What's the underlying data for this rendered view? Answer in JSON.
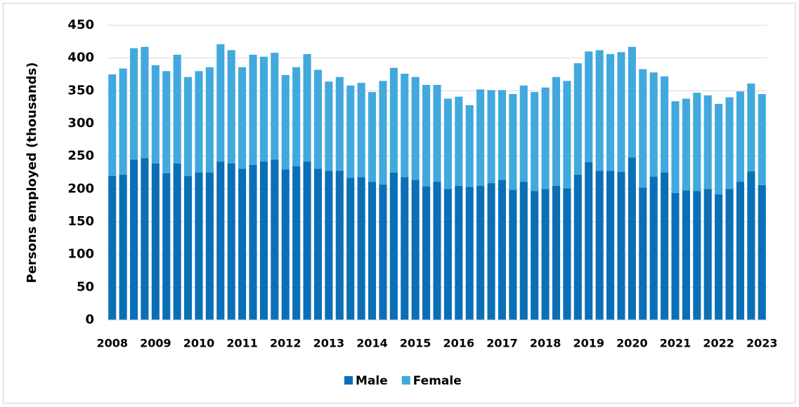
{
  "chart_data": {
    "type": "stacked-bar",
    "y_label": "Persons employed (thousands)",
    "categories": [
      "2008",
      null,
      null,
      null,
      "2009",
      null,
      null,
      null,
      "2010",
      null,
      null,
      null,
      "2011",
      null,
      null,
      null,
      "2012",
      null,
      null,
      null,
      "2013",
      null,
      null,
      null,
      "2014",
      null,
      null,
      null,
      "2015",
      null,
      null,
      null,
      "2016",
      null,
      null,
      null,
      "2017",
      null,
      null,
      null,
      "2018",
      null,
      null,
      null,
      "2019",
      null,
      null,
      null,
      "2020",
      null,
      null,
      null,
      "2021",
      null,
      null,
      null,
      "2022",
      null,
      null,
      null,
      "2023"
    ],
    "series": [
      {
        "name": "Male",
        "color": "#0b6fb6",
        "values": [
          220,
          222,
          245,
          247,
          239,
          224,
          239,
          220,
          225,
          225,
          242,
          239,
          231,
          237,
          242,
          245,
          230,
          235,
          242,
          231,
          228,
          228,
          217,
          218,
          211,
          207,
          225,
          218,
          214,
          204,
          211,
          200,
          205,
          203,
          205,
          209,
          214,
          199,
          211,
          197,
          200,
          205,
          201,
          222,
          241,
          228,
          228,
          226,
          248,
          202,
          219,
          225,
          194,
          198,
          197,
          200,
          192,
          200,
          211,
          227,
          206
        ]
      },
      {
        "name": "Female",
        "color": "#42a9de",
        "values": [
          155,
          162,
          170,
          170,
          150,
          156,
          166,
          151,
          155,
          161,
          179,
          173,
          155,
          168,
          160,
          163,
          144,
          151,
          164,
          151,
          136,
          143,
          141,
          144,
          137,
          158,
          160,
          158,
          157,
          155,
          148,
          138,
          136,
          125,
          147,
          142,
          137,
          146,
          147,
          151,
          155,
          166,
          164,
          170,
          169,
          184,
          178,
          183,
          169,
          181,
          159,
          147,
          140,
          140,
          150,
          143,
          138,
          140,
          138,
          134,
          139
        ]
      }
    ],
    "ylim": [
      0,
      450
    ],
    "yticks": [
      0,
      50,
      100,
      150,
      200,
      250,
      300,
      350,
      400,
      450
    ],
    "grid": true,
    "legend": "bottom"
  }
}
